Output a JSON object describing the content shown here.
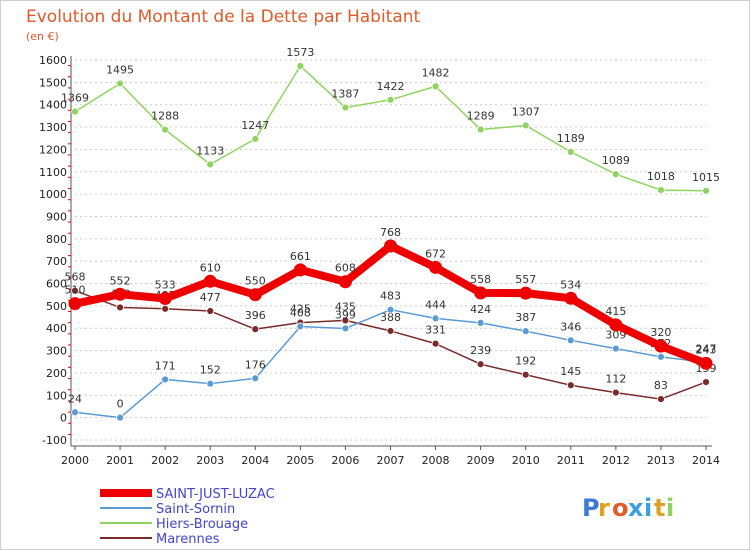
{
  "chart_data": {
    "type": "line",
    "title": "Evolution du Montant de la Dette par Habitant",
    "subtitle": "(en €)",
    "x": [
      "2000",
      "2001",
      "2002",
      "2003",
      "2004",
      "2005",
      "2006",
      "2007",
      "2008",
      "2009",
      "2010",
      "2011",
      "2012",
      "2013",
      "2014"
    ],
    "yticks": [
      -100,
      0,
      100,
      200,
      300,
      400,
      500,
      600,
      700,
      800,
      900,
      1000,
      1100,
      1200,
      1300,
      1400,
      1500,
      1600
    ],
    "ylim": [
      -100,
      1600
    ],
    "grid": "horizontal dotted",
    "legend_position": "bottom-left",
    "series": [
      {
        "name": "Marennes",
        "color": "#7b2a2a",
        "values": [
          568,
          493,
          487,
          477,
          396,
          425,
          435,
          388,
          331,
          239,
          192,
          145,
          112,
          83,
          159
        ],
        "labels": [
          "568",
          "493",
          "487",
          "477",
          "396",
          "425",
          "435",
          "388",
          "331",
          "239",
          "192",
          "145",
          "112",
          "83",
          "159"
        ]
      },
      {
        "name": "Saint-Sornin",
        "color": "#5b9bd5",
        "values": [
          24,
          0,
          171,
          152,
          176,
          408,
          399,
          483,
          444,
          424,
          387,
          346,
          309,
          272,
          247
        ],
        "labels": [
          "24",
          "0",
          "171",
          "152",
          "176",
          "408",
          "399",
          "483",
          "444",
          "424",
          "387",
          "346",
          "309",
          "272",
          "247"
        ]
      },
      {
        "name": "Hiers-Brouage",
        "color": "#8fd45e",
        "values": [
          1369,
          1495,
          1288,
          1133,
          1247,
          1573,
          1387,
          1422,
          1482,
          1289,
          1307,
          1189,
          1089,
          1018,
          1015
        ],
        "labels": [
          "1369",
          "1495",
          "1288",
          "1133",
          "1247",
          "1573",
          "1387",
          "1422",
          "1482",
          "1289",
          "1307",
          "1189",
          "1089",
          "1018",
          "1015"
        ]
      },
      {
        "name": "SAINT-JUST-LUZAC",
        "color": "#ee0000",
        "values": [
          510,
          552,
          533,
          610,
          550,
          661,
          608,
          768,
          672,
          558,
          557,
          534,
          415,
          320,
          243
        ],
        "labels": [
          "510",
          "552",
          "533",
          "610",
          "550",
          "661",
          "608",
          "768",
          "672",
          "558",
          "557",
          "534",
          "415",
          "320",
          "243"
        ]
      }
    ],
    "legend": [
      "SAINT-JUST-LUZAC",
      "Saint-Sornin",
      "Hiers-Brouage",
      "Marennes"
    ]
  },
  "logo": {
    "letters": [
      "P",
      "r",
      "o",
      "x",
      "i",
      "t",
      "i"
    ],
    "colors": [
      "#3a7bd5",
      "#e0a020",
      "#e05a2b",
      "#3aa0e0",
      "#3aa0e0",
      "#e0a020",
      "#8fd45e"
    ]
  }
}
